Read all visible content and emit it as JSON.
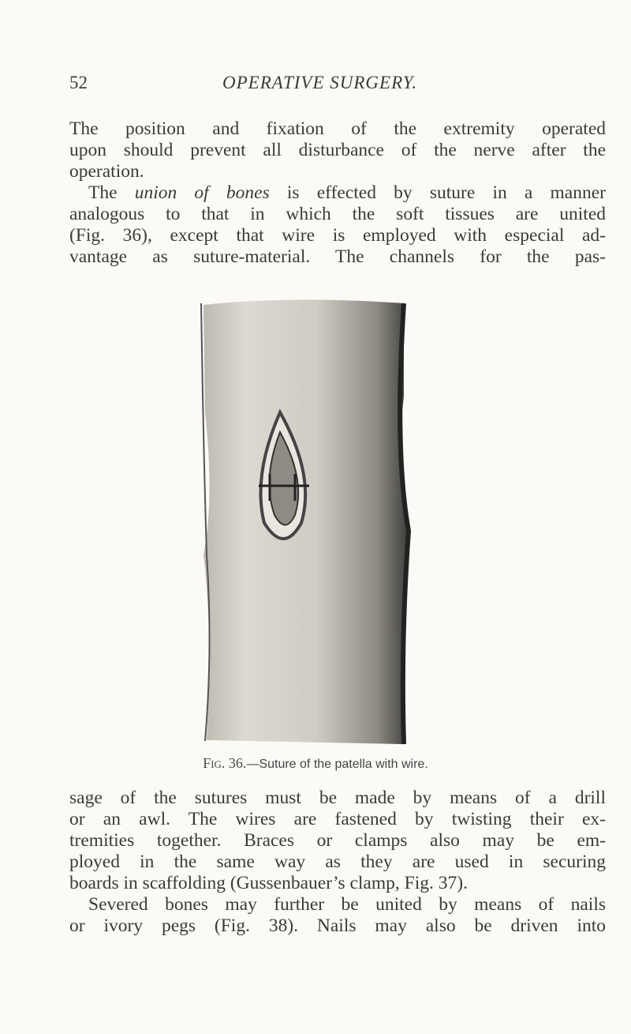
{
  "header": {
    "page_number": "52",
    "running_title": "OPERATIVE SURGERY."
  },
  "body": [
    {
      "lines": [
        "The position and fixation of the extremity operated",
        "upon should prevent all disturbance of the nerve after the",
        "operation.",
        [
          "The ",
          "union of bones",
          " is effected by suture in a manner"
        ],
        "analogous to that in which the soft tissues are united",
        "(Fig. 36), except that wire is employed with especial ad-",
        "vantage as suture-material. The channels for the pas-"
      ]
    },
    {
      "lines": [
        "sage of the sutures must be made by means of a drill",
        "or an awl. The wires are fastened by twisting their ex-",
        "tremities together. Braces or clamps also may be em-",
        "ployed in the same way as they are used in securing",
        "boards in scaffolding (Gussenbauer’s clamp, Fig. 37).",
        "Severed bones may further be united by means of nails",
        "or ivory pegs (Fig. 38). Nails may also be driven into"
      ]
    }
  ],
  "figure": {
    "label": "Fig. 36.",
    "caption": "—Suture of the patella with wire."
  }
}
